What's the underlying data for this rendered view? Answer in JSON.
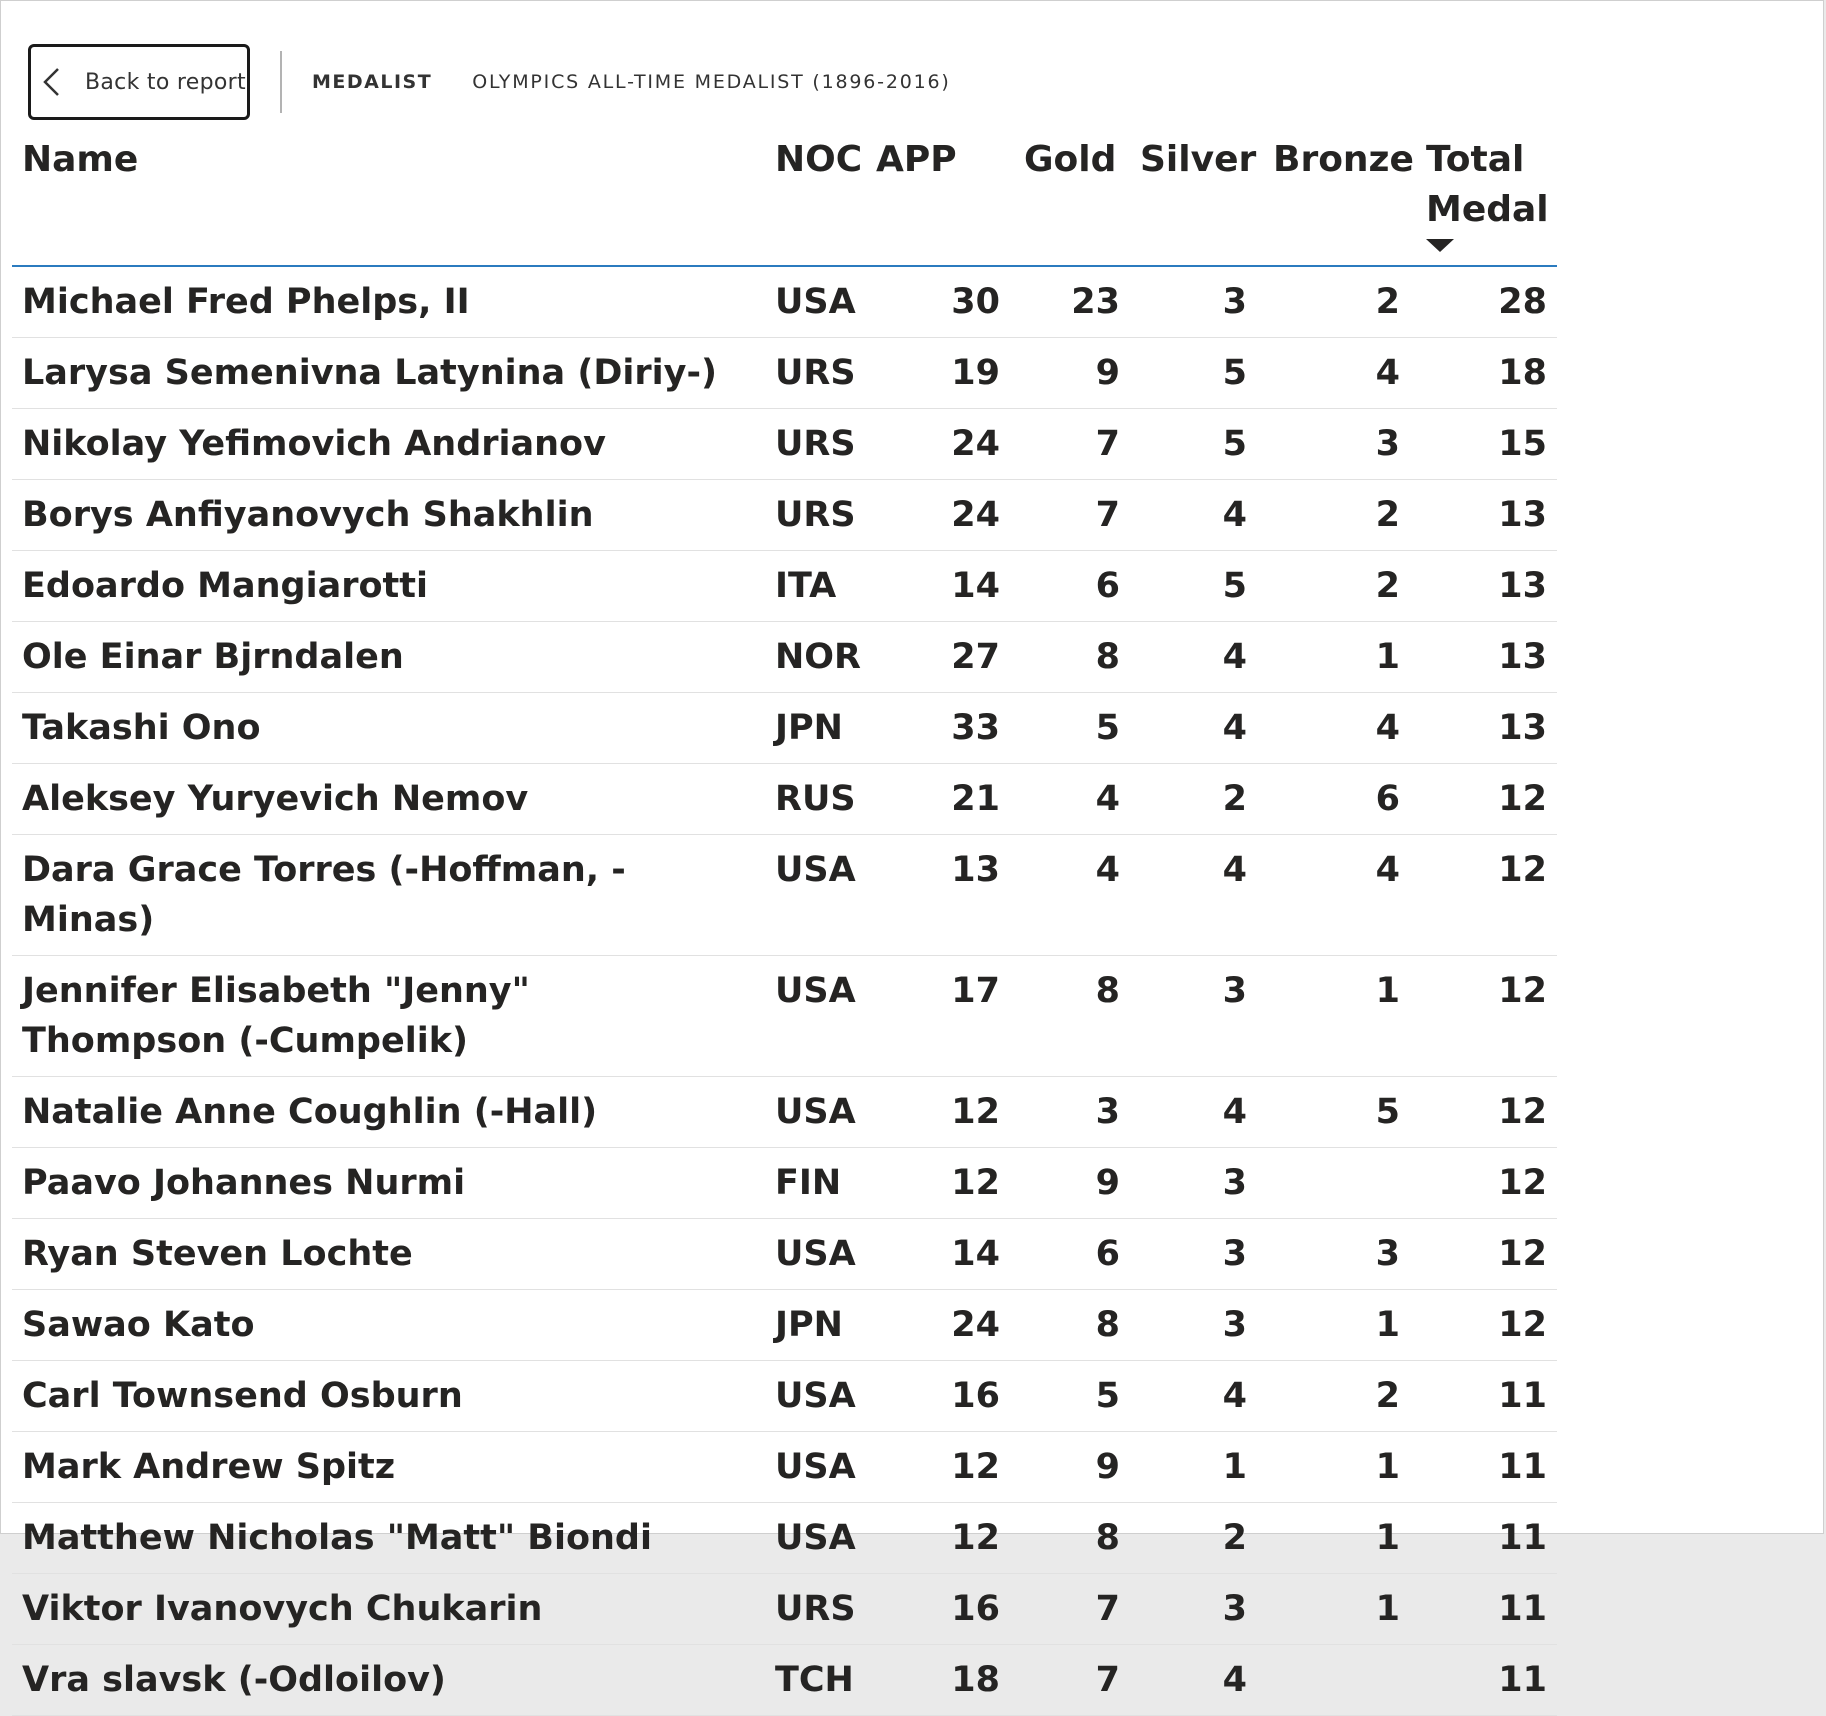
{
  "toolbar": {
    "back_label": "Back to report",
    "crumb_primary": "MEDALIST",
    "crumb_secondary": "OLYMPICS ALL-TIME MEDALIST (1896-2016)"
  },
  "table": {
    "headers": {
      "name": "Name",
      "noc": "NOC",
      "app": "APP",
      "gold": "Gold",
      "silver": "Silver",
      "bronze": "Bronze",
      "total": "Total Medal"
    },
    "sort": {
      "column": "total",
      "direction": "descending"
    },
    "rows": [
      {
        "name": "Michael Fred Phelps, II",
        "noc": "USA",
        "app": "30",
        "gold": "23",
        "silver": "3",
        "bronze": "2",
        "total": "28"
      },
      {
        "name": "Larysa Semenivna Latynina (Diriy-)",
        "noc": "URS",
        "app": "19",
        "gold": "9",
        "silver": "5",
        "bronze": "4",
        "total": "18"
      },
      {
        "name": "Nikolay Yefimovich Andrianov",
        "noc": "URS",
        "app": "24",
        "gold": "7",
        "silver": "5",
        "bronze": "3",
        "total": "15"
      },
      {
        "name": "Borys Anfiyanovych Shakhlin",
        "noc": "URS",
        "app": "24",
        "gold": "7",
        "silver": "4",
        "bronze": "2",
        "total": "13"
      },
      {
        "name": "Edoardo Mangiarotti",
        "noc": "ITA",
        "app": "14",
        "gold": "6",
        "silver": "5",
        "bronze": "2",
        "total": "13"
      },
      {
        "name": "Ole Einar Bjrndalen",
        "noc": "NOR",
        "app": "27",
        "gold": "8",
        "silver": "4",
        "bronze": "1",
        "total": "13"
      },
      {
        "name": "Takashi Ono",
        "noc": "JPN",
        "app": "33",
        "gold": "5",
        "silver": "4",
        "bronze": "4",
        "total": "13"
      },
      {
        "name": "Aleksey Yuryevich Nemov",
        "noc": "RUS",
        "app": "21",
        "gold": "4",
        "silver": "2",
        "bronze": "6",
        "total": "12"
      },
      {
        "name": "Dara Grace Torres (-Hoffman, -Minas)",
        "noc": "USA",
        "app": "13",
        "gold": "4",
        "silver": "4",
        "bronze": "4",
        "total": "12"
      },
      {
        "name": "Jennifer Elisabeth \"Jenny\" Thompson (-Cumpelik)",
        "noc": "USA",
        "app": "17",
        "gold": "8",
        "silver": "3",
        "bronze": "1",
        "total": "12"
      },
      {
        "name": "Natalie Anne Coughlin (-Hall)",
        "noc": "USA",
        "app": "12",
        "gold": "3",
        "silver": "4",
        "bronze": "5",
        "total": "12"
      },
      {
        "name": "Paavo Johannes Nurmi",
        "noc": "FIN",
        "app": "12",
        "gold": "9",
        "silver": "3",
        "bronze": "",
        "total": "12"
      },
      {
        "name": "Ryan Steven Lochte",
        "noc": "USA",
        "app": "14",
        "gold": "6",
        "silver": "3",
        "bronze": "3",
        "total": "12"
      },
      {
        "name": "Sawao Kato",
        "noc": "JPN",
        "app": "24",
        "gold": "8",
        "silver": "3",
        "bronze": "1",
        "total": "12"
      },
      {
        "name": "Carl Townsend Osburn",
        "noc": "USA",
        "app": "16",
        "gold": "5",
        "silver": "4",
        "bronze": "2",
        "total": "11"
      },
      {
        "name": "Mark Andrew Spitz",
        "noc": "USA",
        "app": "12",
        "gold": "9",
        "silver": "1",
        "bronze": "1",
        "total": "11"
      },
      {
        "name": "Matthew Nicholas \"Matt\" Biondi",
        "noc": "USA",
        "app": "12",
        "gold": "8",
        "silver": "2",
        "bronze": "1",
        "total": "11"
      },
      {
        "name": "Viktor Ivanovych Chukarin",
        "noc": "URS",
        "app": "16",
        "gold": "7",
        "silver": "3",
        "bronze": "1",
        "total": "11"
      },
      {
        "name": "Vra slavsk (-Odloilov)",
        "noc": "TCH",
        "app": "18",
        "gold": "7",
        "silver": "4",
        "bronze": "",
        "total": "11"
      }
    ]
  },
  "colors": {
    "header_rule": "#2b7bbf",
    "row_divider": "#e1e1e1",
    "text": "#252423"
  }
}
